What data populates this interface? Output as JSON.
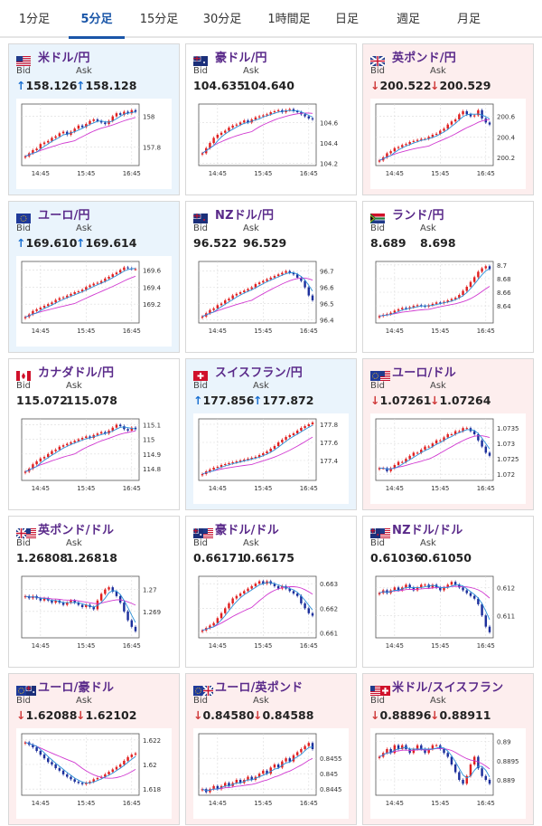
{
  "tabs": [
    {
      "label": "1分足",
      "active": false
    },
    {
      "label": "5分足",
      "active": true
    },
    {
      "label": "15分足",
      "active": false
    },
    {
      "label": "30分足",
      "active": false
    },
    {
      "label": "1時間足",
      "active": false
    },
    {
      "label": "日足",
      "active": false
    },
    {
      "label": "週足",
      "active": false
    },
    {
      "label": "月足",
      "active": false
    }
  ],
  "labels": {
    "bid": "Bid",
    "ask": "Ask"
  },
  "colors": {
    "up_arrow": "#1a6fd0",
    "down_arrow": "#d03a3a",
    "candle_up": "#e02020",
    "candle_down": "#1c2f9c",
    "ma_short": "#2a8fd8",
    "ma_long": "#d038d0",
    "pair_text": "#5a2a8a",
    "active_tab": "#1a56a8"
  },
  "cards": [
    {
      "pair": "米ドル/円",
      "flag": "us",
      "trend": "up",
      "bid": "158.126",
      "ask": "158.128",
      "bid_arrow": "↑",
      "ask_arrow": "↑",
      "chart_data": {
        "type": "candlestick",
        "x_ticks": [
          "14:45",
          "15:45",
          "16:45"
        ],
        "y_ticks": [
          "158",
          "157.8"
        ],
        "ylim": [
          157.68,
          158.08
        ],
        "closes": [
          157.74,
          157.76,
          157.78,
          157.79,
          157.82,
          157.83,
          157.84,
          157.86,
          157.87,
          157.89,
          157.9,
          157.88,
          157.9,
          157.92,
          157.94,
          157.93,
          157.95,
          157.97,
          157.98,
          157.97,
          157.96,
          157.95,
          157.97,
          158.0,
          158.02,
          158.01,
          158.03,
          158.02,
          158.04,
          158.03
        ]
      }
    },
    {
      "pair": "豪ドル/円",
      "flag": "au",
      "trend": "neutral",
      "bid": "104.635",
      "ask": "104.640",
      "bid_arrow": "",
      "ask_arrow": "",
      "chart_data": {
        "type": "candlestick",
        "x_ticks": [
          "14:45",
          "15:45",
          "16:45"
        ],
        "y_ticks": [
          "104.6",
          "104.4",
          "104.2"
        ],
        "ylim": [
          104.18,
          104.78
        ],
        "closes": [
          104.3,
          104.35,
          104.4,
          104.45,
          104.48,
          104.5,
          104.52,
          104.55,
          104.57,
          104.58,
          104.6,
          104.62,
          104.6,
          104.63,
          104.65,
          104.66,
          104.67,
          104.68,
          104.7,
          104.71,
          104.72,
          104.7,
          104.72,
          104.73,
          104.71,
          104.7,
          104.68,
          104.66,
          104.64,
          104.63
        ]
      }
    },
    {
      "pair": "英ポンド/円",
      "flag": "gb",
      "trend": "down",
      "bid": "200.522",
      "ask": "200.529",
      "bid_arrow": "↓",
      "ask_arrow": "↓",
      "chart_data": {
        "type": "candlestick",
        "x_ticks": [
          "14:45",
          "15:45",
          "16:45"
        ],
        "y_ticks": [
          "200.6",
          "200.4",
          "200.2"
        ],
        "ylim": [
          200.12,
          200.72
        ],
        "closes": [
          200.17,
          200.2,
          200.24,
          200.26,
          200.29,
          200.3,
          200.32,
          200.33,
          200.35,
          200.36,
          200.37,
          200.38,
          200.38,
          200.4,
          200.42,
          200.43,
          200.46,
          200.48,
          200.52,
          200.55,
          200.57,
          200.62,
          200.65,
          200.62,
          200.6,
          200.61,
          200.66,
          200.58,
          200.54,
          200.52
        ]
      }
    },
    {
      "pair": "ユーロ/円",
      "flag": "eu",
      "trend": "up",
      "bid": "169.610",
      "ask": "169.614",
      "bid_arrow": "↑",
      "ask_arrow": "↑",
      "chart_data": {
        "type": "candlestick",
        "x_ticks": [
          "14:45",
          "15:45",
          "16:45"
        ],
        "y_ticks": [
          "169.6",
          "169.4",
          "169.2"
        ],
        "ylim": [
          168.98,
          169.7
        ],
        "closes": [
          169.05,
          169.08,
          169.12,
          169.14,
          169.16,
          169.18,
          169.2,
          169.22,
          169.25,
          169.27,
          169.28,
          169.3,
          169.32,
          169.34,
          169.35,
          169.37,
          169.4,
          169.42,
          169.44,
          169.45,
          169.47,
          169.5,
          169.52,
          169.55,
          169.57,
          169.6,
          169.63,
          169.62,
          169.61,
          169.61
        ]
      }
    },
    {
      "pair": "NZドル/円",
      "flag": "nz",
      "trend": "neutral",
      "bid": "96.522",
      "ask": "96.529",
      "bid_arrow": "",
      "ask_arrow": "",
      "chart_data": {
        "type": "candlestick",
        "x_ticks": [
          "14:45",
          "15:45",
          "16:45"
        ],
        "y_ticks": [
          "96.7",
          "96.6",
          "96.5",
          "96.4"
        ],
        "ylim": [
          96.38,
          96.76
        ],
        "closes": [
          96.42,
          96.44,
          96.46,
          96.47,
          96.49,
          96.5,
          96.52,
          96.53,
          96.55,
          96.56,
          96.57,
          96.58,
          96.59,
          96.6,
          96.62,
          96.63,
          96.64,
          96.65,
          96.66,
          96.67,
          96.68,
          96.69,
          96.7,
          96.69,
          96.68,
          96.66,
          96.64,
          96.6,
          96.55,
          96.52
        ]
      }
    },
    {
      "pair": "ランド/円",
      "flag": "za",
      "trend": "neutral",
      "bid": "8.689",
      "ask": "8.698",
      "bid_arrow": "",
      "ask_arrow": "",
      "chart_data": {
        "type": "candlestick",
        "x_ticks": [
          "14:45",
          "15:45",
          "16:45"
        ],
        "y_ticks": [
          "8.7",
          "8.68",
          "8.66",
          "8.64"
        ],
        "ylim": [
          8.615,
          8.705
        ],
        "closes": [
          8.625,
          8.627,
          8.628,
          8.63,
          8.633,
          8.635,
          8.637,
          8.636,
          8.638,
          8.64,
          8.641,
          8.64,
          8.639,
          8.641,
          8.643,
          8.645,
          8.644,
          8.646,
          8.648,
          8.65,
          8.652,
          8.656,
          8.662,
          8.668,
          8.675,
          8.682,
          8.69,
          8.695,
          8.698,
          8.694
        ]
      }
    },
    {
      "pair": "カナダドル/円",
      "flag": "ca",
      "trend": "neutral",
      "bid": "115.072",
      "ask": "115.078",
      "bid_arrow": "",
      "ask_arrow": "",
      "chart_data": {
        "type": "candlestick",
        "x_ticks": [
          "14:45",
          "15:45",
          "16:45"
        ],
        "y_ticks": [
          "115.1",
          "115",
          "114.9",
          "114.8"
        ],
        "ylim": [
          114.72,
          115.14
        ],
        "closes": [
          114.78,
          114.8,
          114.83,
          114.85,
          114.87,
          114.88,
          114.9,
          114.92,
          114.93,
          114.95,
          114.96,
          114.97,
          114.98,
          114.99,
          115.0,
          115.01,
          115.02,
          115.01,
          115.03,
          115.04,
          115.05,
          115.04,
          115.06,
          115.08,
          115.1,
          115.09,
          115.07,
          115.06,
          115.08,
          115.07
        ]
      }
    },
    {
      "pair": "スイスフラン/円",
      "flag": "ch",
      "trend": "up",
      "bid": "177.856",
      "ask": "177.872",
      "bid_arrow": "↑",
      "ask_arrow": "↑",
      "chart_data": {
        "type": "candlestick",
        "x_ticks": [
          "14:45",
          "15:45",
          "16:45"
        ],
        "y_ticks": [
          "177.8",
          "177.6",
          "177.4"
        ],
        "ylim": [
          177.18,
          177.86
        ],
        "closes": [
          177.25,
          177.28,
          177.3,
          177.32,
          177.33,
          177.35,
          177.36,
          177.37,
          177.38,
          177.39,
          177.4,
          177.41,
          177.42,
          177.43,
          177.44,
          177.46,
          177.48,
          177.5,
          177.53,
          177.56,
          177.6,
          177.63,
          177.66,
          177.68,
          177.7,
          177.73,
          177.76,
          177.78,
          177.8,
          177.82
        ]
      }
    },
    {
      "pair": "ユーロ/ドル",
      "flag": "eu-us",
      "trend": "down",
      "bid": "1.07261",
      "ask": "1.07264",
      "bid_arrow": "↓",
      "ask_arrow": "↓",
      "chart_data": {
        "type": "candlestick",
        "x_ticks": [
          "14:45",
          "15:45",
          "16:45"
        ],
        "y_ticks": [
          "1.0735",
          "1.073",
          "1.0725",
          "1.072"
        ],
        "ylim": [
          1.0718,
          1.0738
        ],
        "closes": [
          1.0722,
          1.0722,
          1.0721,
          1.0722,
          1.0723,
          1.0724,
          1.0724,
          1.0725,
          1.0726,
          1.0727,
          1.0727,
          1.0728,
          1.0729,
          1.0729,
          1.073,
          1.0731,
          1.0731,
          1.0732,
          1.0733,
          1.0733,
          1.0734,
          1.0734,
          1.0735,
          1.0735,
          1.0734,
          1.0733,
          1.0731,
          1.0729,
          1.0727,
          1.0726
        ]
      }
    },
    {
      "pair": "英ポンド/ドル",
      "flag": "gb-us",
      "trend": "neutral",
      "bid": "1.26808",
      "ask": "1.26818",
      "bid_arrow": "",
      "ask_arrow": "",
      "chart_data": {
        "type": "candlestick",
        "x_ticks": [
          "14:45",
          "15:45",
          "16:45"
        ],
        "y_ticks": [
          "1.27",
          "1.269"
        ],
        "ylim": [
          1.2678,
          1.2706
        ],
        "closes": [
          1.2697,
          1.2696,
          1.2697,
          1.2696,
          1.2695,
          1.2696,
          1.2695,
          1.2694,
          1.2695,
          1.2694,
          1.2693,
          1.2694,
          1.2695,
          1.2694,
          1.2693,
          1.2692,
          1.2693,
          1.2692,
          1.2691,
          1.2695,
          1.2698,
          1.27,
          1.2701,
          1.2699,
          1.2697,
          1.2694,
          1.269,
          1.2686,
          1.2683,
          1.2681
        ]
      }
    },
    {
      "pair": "豪ドル/ドル",
      "flag": "au-us",
      "trend": "neutral",
      "bid": "0.66171",
      "ask": "0.66175",
      "bid_arrow": "",
      "ask_arrow": "",
      "chart_data": {
        "type": "candlestick",
        "x_ticks": [
          "14:45",
          "15:45",
          "16:45"
        ],
        "y_ticks": [
          "0.663",
          "0.662",
          "0.661"
        ],
        "ylim": [
          0.6608,
          0.6633
        ],
        "closes": [
          0.6611,
          0.6612,
          0.6613,
          0.6614,
          0.6616,
          0.6618,
          0.662,
          0.6622,
          0.6624,
          0.6625,
          0.6626,
          0.6627,
          0.6628,
          0.6629,
          0.663,
          0.6631,
          0.663,
          0.6631,
          0.663,
          0.6629,
          0.6628,
          0.6629,
          0.6628,
          0.6627,
          0.6626,
          0.6625,
          0.6622,
          0.662,
          0.6618,
          0.6617
        ]
      }
    },
    {
      "pair": "NZドル/ドル",
      "flag": "nz-us",
      "trend": "neutral",
      "bid": "0.61036",
      "ask": "0.61050",
      "bid_arrow": "",
      "ask_arrow": "",
      "chart_data": {
        "type": "candlestick",
        "x_ticks": [
          "14:45",
          "15:45",
          "16:45"
        ],
        "y_ticks": [
          "0.612",
          "0.611"
        ],
        "ylim": [
          0.6102,
          0.6124
        ],
        "closes": [
          0.6118,
          0.6119,
          0.6118,
          0.6119,
          0.612,
          0.6119,
          0.612,
          0.6121,
          0.612,
          0.6119,
          0.612,
          0.6121,
          0.6121,
          0.612,
          0.6121,
          0.612,
          0.6119,
          0.612,
          0.6121,
          0.6122,
          0.6121,
          0.612,
          0.6119,
          0.6118,
          0.6117,
          0.6116,
          0.6114,
          0.611,
          0.6106,
          0.6104
        ]
      }
    },
    {
      "pair": "ユーロ/豪ドル",
      "flag": "eu-au",
      "trend": "down",
      "bid": "1.62088",
      "ask": "1.62102",
      "bid_arrow": "↓",
      "ask_arrow": "↓",
      "chart_data": {
        "type": "candlestick",
        "x_ticks": [
          "14:45",
          "15:45",
          "16:45"
        ],
        "y_ticks": [
          "1.622",
          "1.62",
          "1.618"
        ],
        "ylim": [
          1.6175,
          1.6225
        ],
        "closes": [
          1.6218,
          1.6216,
          1.6214,
          1.6211,
          1.6208,
          1.6205,
          1.6202,
          1.62,
          1.6197,
          1.6195,
          1.6192,
          1.619,
          1.6188,
          1.6186,
          1.6185,
          1.6184,
          1.6185,
          1.6186,
          1.6188,
          1.6189,
          1.619,
          1.6192,
          1.6194,
          1.6196,
          1.6198,
          1.62,
          1.6203,
          1.6206,
          1.6208,
          1.6209
        ]
      }
    },
    {
      "pair": "ユーロ/英ポンド",
      "flag": "eu-gb",
      "trend": "down",
      "bid": "0.84580",
      "ask": "0.84588",
      "bid_arrow": "↓",
      "ask_arrow": "↓",
      "chart_data": {
        "type": "candlestick",
        "x_ticks": [
          "14:45",
          "15:45",
          "16:45"
        ],
        "y_ticks": [
          "0.8455",
          "0.845",
          "0.8445"
        ],
        "ylim": [
          0.8443,
          0.8463
        ],
        "closes": [
          0.8445,
          0.8444,
          0.8445,
          0.8446,
          0.8445,
          0.8446,
          0.8447,
          0.8446,
          0.8447,
          0.8448,
          0.8447,
          0.8448,
          0.8449,
          0.8448,
          0.8449,
          0.845,
          0.8451,
          0.845,
          0.8452,
          0.8453,
          0.8452,
          0.8454,
          0.8455,
          0.8454,
          0.8456,
          0.8457,
          0.8458,
          0.8459,
          0.846,
          0.8458
        ]
      }
    },
    {
      "pair": "米ドル/スイスフラン",
      "flag": "us-ch",
      "trend": "down",
      "bid": "0.88896",
      "ask": "0.88911",
      "bid_arrow": "↓",
      "ask_arrow": "↓",
      "chart_data": {
        "type": "candlestick",
        "x_ticks": [
          "14:45",
          "15:45",
          "16:45"
        ],
        "y_ticks": [
          "0.89",
          "0.8895",
          "0.889"
        ],
        "ylim": [
          0.8886,
          0.8902
        ],
        "closes": [
          0.8896,
          0.8897,
          0.8898,
          0.8897,
          0.8899,
          0.8898,
          0.8899,
          0.8898,
          0.8897,
          0.8898,
          0.8899,
          0.8898,
          0.8897,
          0.8898,
          0.8899,
          0.8899,
          0.8898,
          0.8897,
          0.8896,
          0.8894,
          0.8892,
          0.889,
          0.8889,
          0.8891,
          0.8894,
          0.8896,
          0.8893,
          0.8891,
          0.889,
          0.8889
        ]
      }
    }
  ]
}
